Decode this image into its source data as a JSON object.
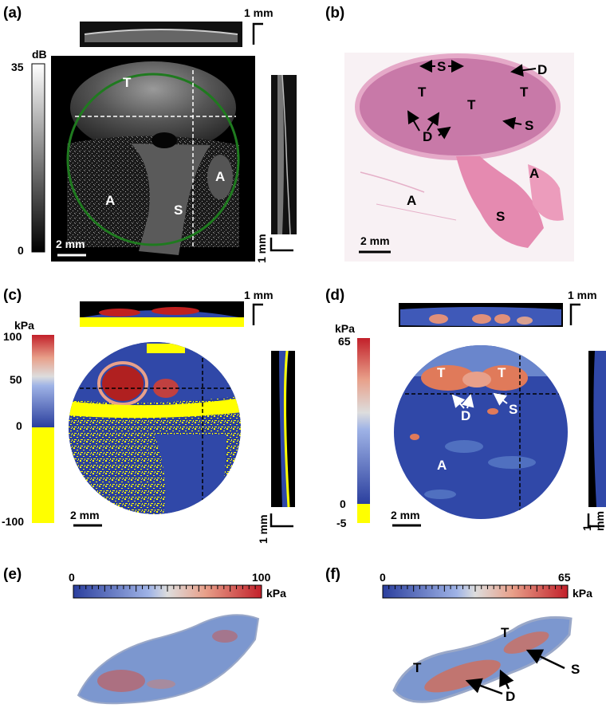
{
  "panels": {
    "a": {
      "label": "(a)",
      "colorbar": {
        "unit": "dB",
        "max": "35",
        "min": "0"
      },
      "scale_top": "1 mm",
      "scale_bottom": "2 mm",
      "scale_side": "1 mm",
      "regions": {
        "tumor": "T",
        "adipose_left": "A",
        "adipose_right": "A",
        "stroma": "S"
      }
    },
    "b": {
      "label": "(b)",
      "scale": "2 mm",
      "annotations": {
        "s_top": "S",
        "d_top": "D",
        "t1": "T",
        "t2": "T",
        "t3": "T",
        "d_mid": "D",
        "s_mid": "S",
        "a_right": "A",
        "a_left": "A",
        "s_bottom": "S"
      }
    },
    "c": {
      "label": "(c)",
      "colorbar": {
        "unit": "kPa",
        "ticks": [
          "100",
          "50",
          "0",
          "-100"
        ]
      },
      "scale_top": "1 mm",
      "scale_bottom": "2 mm",
      "scale_side": "1 mm"
    },
    "d": {
      "label": "(d)",
      "colorbar": {
        "unit": "kPa",
        "ticks": [
          "65",
          "0",
          "-5"
        ]
      },
      "scale_top": "1 mm",
      "scale_bottom": "2 mm",
      "scale_side": "1 mm",
      "annotations": {
        "t_left": "T",
        "t_right": "T",
        "d": "D",
        "s": "S",
        "a": "A"
      }
    },
    "e": {
      "label": "(e)",
      "colorbar": {
        "min": "0",
        "max": "100",
        "unit": "kPa"
      }
    },
    "f": {
      "label": "(f)",
      "colorbar": {
        "min": "0",
        "max": "65",
        "unit": "kPa"
      },
      "annotations": {
        "t_left": "T",
        "t_top": "T",
        "s": "S",
        "d": "D"
      }
    }
  },
  "colors": {
    "green_circle": "#1f7a1f",
    "yellow": "#ffff00",
    "jet_low": "#3048a8",
    "jet_high": "#c02020",
    "he_pink": "#e58ab0"
  }
}
